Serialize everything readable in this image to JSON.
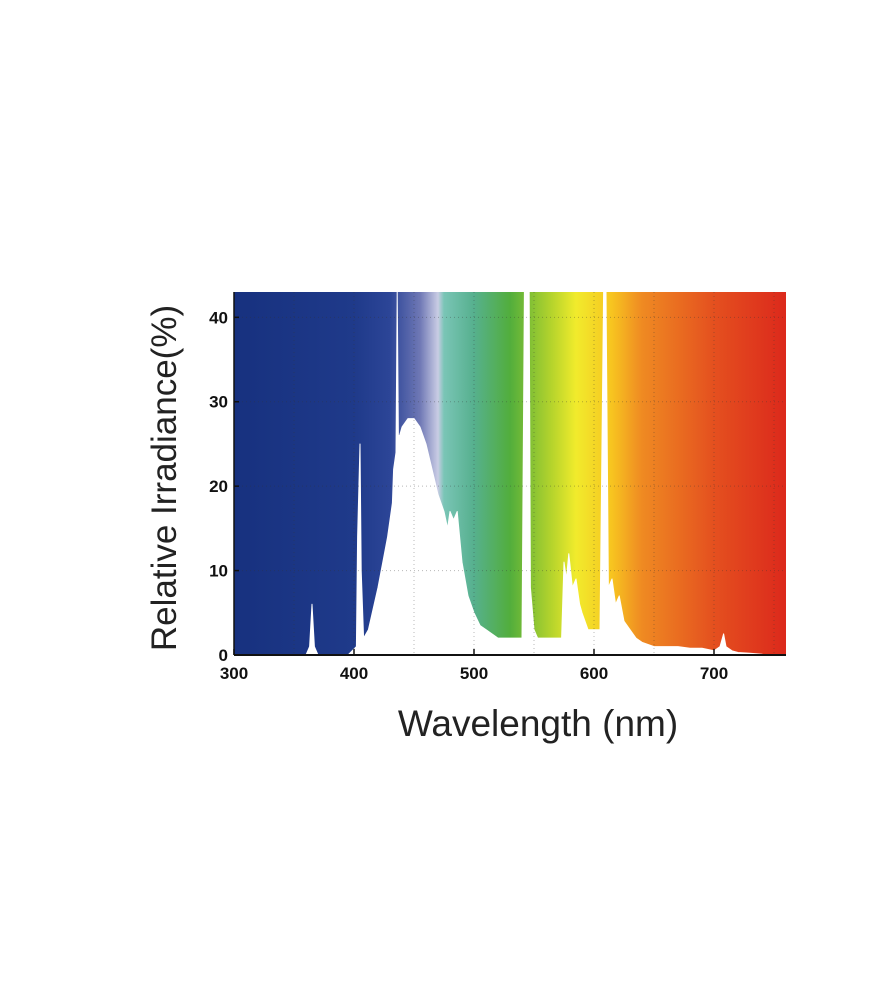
{
  "chart_data": {
    "type": "area",
    "title": "",
    "xlabel": "Wavelength (nm)",
    "ylabel": "Relative Irradiance(%)",
    "xlim": [
      300,
      760
    ],
    "ylim": [
      0,
      43
    ],
    "x_ticks": [
      300,
      400,
      500,
      600,
      700
    ],
    "y_ticks": [
      0,
      10,
      20,
      30,
      40
    ],
    "x_tick_labels": [
      "300",
      "400",
      "500",
      "600",
      "700"
    ],
    "y_tick_labels": [
      "0",
      "10",
      "20",
      "30",
      "40"
    ],
    "grid": true,
    "background": "visible-spectrum color gradient",
    "fill_color": "#ffffff",
    "spectrum_colors": [
      {
        "nm": 300,
        "color": "#17317f"
      },
      {
        "nm": 400,
        "color": "#1f3a8a"
      },
      {
        "nm": 430,
        "color": "#2c4597"
      },
      {
        "nm": 455,
        "color": "#6f78b5"
      },
      {
        "nm": 470,
        "color": "#c9cce4"
      },
      {
        "nm": 475,
        "color": "#7ac5b6"
      },
      {
        "nm": 500,
        "color": "#56b08e"
      },
      {
        "nm": 530,
        "color": "#52ae3c"
      },
      {
        "nm": 565,
        "color": "#b6d42c"
      },
      {
        "nm": 585,
        "color": "#f1eb2c"
      },
      {
        "nm": 615,
        "color": "#f7c420"
      },
      {
        "nm": 640,
        "color": "#ef8a22"
      },
      {
        "nm": 700,
        "color": "#e4501f"
      },
      {
        "nm": 760,
        "color": "#dc291c"
      }
    ],
    "series": [
      {
        "x": [
          300,
          360,
          363,
          365,
          367,
          370,
          395,
          402,
          403,
          405,
          406,
          408,
          412,
          420,
          428,
          432,
          433,
          435,
          436,
          437,
          438,
          440,
          445,
          450,
          455,
          460,
          465,
          470,
          475,
          478,
          480,
          483,
          486,
          488,
          490,
          495,
          500,
          505,
          510,
          515,
          520,
          525,
          530,
          540,
          542,
          543,
          545,
          546,
          547,
          550,
          553,
          556,
          560,
          565,
          570,
          573,
          575,
          577,
          579,
          582,
          585,
          588,
          590,
          595,
          600,
          605,
          608,
          610,
          612,
          615,
          618,
          621,
          625,
          630,
          635,
          640,
          650,
          660,
          670,
          680,
          690,
          700,
          705,
          708,
          710,
          715,
          720,
          730,
          740,
          760
        ],
        "values": [
          0,
          0,
          1,
          6,
          1,
          0,
          0,
          1,
          14,
          25,
          10,
          2,
          3,
          8,
          14,
          18,
          22,
          24,
          43,
          26,
          26,
          27,
          28,
          28,
          27,
          25,
          22,
          19,
          17,
          15,
          17,
          16,
          17,
          14,
          11,
          7,
          5,
          3.5,
          3,
          2.5,
          2,
          2,
          2,
          2,
          43,
          43,
          43,
          43,
          8,
          3,
          2,
          2,
          2,
          2,
          2,
          2,
          11,
          9,
          12,
          8,
          9,
          6,
          5,
          3,
          3,
          3,
          43,
          43,
          8,
          9,
          6,
          7,
          4,
          3,
          2,
          1.5,
          1,
          1,
          1,
          0.8,
          0.8,
          0.5,
          1,
          2.5,
          1,
          0.5,
          0.3,
          0.2,
          0.1,
          0
        ]
      }
    ]
  }
}
